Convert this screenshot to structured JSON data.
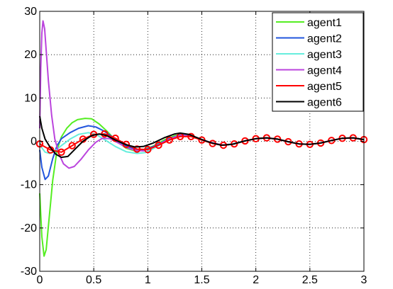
{
  "chart_data": {
    "type": "line",
    "title": "",
    "xlabel": "",
    "ylabel": "",
    "xlim": [
      0,
      3
    ],
    "ylim": [
      -30,
      30
    ],
    "x_ticks": [
      0,
      0.5,
      1,
      1.5,
      2,
      2.5,
      3
    ],
    "x_tick_labels": [
      "0",
      "0.5",
      "1",
      "1.5",
      "2",
      "2.5",
      "3"
    ],
    "y_ticks": [
      -30,
      -20,
      -10,
      0,
      10,
      20,
      30
    ],
    "y_tick_labels": [
      "-30",
      "-20",
      "-10",
      "0",
      "10",
      "20",
      "30"
    ],
    "grid": true,
    "legend_position": "top-right",
    "series": [
      {
        "name": "agent1",
        "color": "#55ee22",
        "marker": "none",
        "points": [
          [
            0,
            -12
          ],
          [
            0.02,
            -22
          ],
          [
            0.04,
            -26.5
          ],
          [
            0.06,
            -25
          ],
          [
            0.09,
            -17
          ],
          [
            0.12,
            -9
          ],
          [
            0.16,
            -2
          ],
          [
            0.2,
            1
          ],
          [
            0.25,
            3
          ],
          [
            0.3,
            4.3
          ],
          [
            0.35,
            5
          ],
          [
            0.42,
            5.3
          ],
          [
            0.48,
            5.2
          ],
          [
            0.55,
            4
          ],
          [
            0.62,
            2.4
          ],
          [
            0.7,
            0.3
          ],
          [
            0.8,
            -1.6
          ],
          [
            0.88,
            -2.2
          ],
          [
            0.95,
            -2.1
          ],
          [
            1.05,
            -1.1
          ],
          [
            1.15,
            0.3
          ],
          [
            1.25,
            1.3
          ],
          [
            1.32,
            1.5
          ],
          [
            1.4,
            1.2
          ],
          [
            1.5,
            0.3
          ],
          [
            1.6,
            -0.4
          ],
          [
            1.7,
            -0.9
          ],
          [
            1.8,
            -0.6
          ],
          [
            1.9,
            0.1
          ],
          [
            2.0,
            0.6
          ],
          [
            2.1,
            0.8
          ],
          [
            2.2,
            0.5
          ],
          [
            2.3,
            -0.1
          ],
          [
            2.4,
            -0.6
          ],
          [
            2.5,
            -0.7
          ],
          [
            2.6,
            -0.4
          ],
          [
            2.7,
            0.2
          ],
          [
            2.8,
            0.7
          ],
          [
            2.9,
            0.8
          ],
          [
            3.0,
            0.4
          ]
        ]
      },
      {
        "name": "agent2",
        "color": "#2255dd",
        "marker": "none",
        "points": [
          [
            0,
            -2
          ],
          [
            0.02,
            -6
          ],
          [
            0.05,
            -8.8
          ],
          [
            0.08,
            -8
          ],
          [
            0.12,
            -4
          ],
          [
            0.16,
            -1
          ],
          [
            0.2,
            0.6
          ],
          [
            0.28,
            2
          ],
          [
            0.36,
            3
          ],
          [
            0.45,
            3.6
          ],
          [
            0.52,
            3.3
          ],
          [
            0.6,
            2.3
          ],
          [
            0.7,
            0.5
          ],
          [
            0.8,
            -1.1
          ],
          [
            0.9,
            -1.9
          ],
          [
            0.98,
            -1.9
          ],
          [
            1.08,
            -0.9
          ],
          [
            1.18,
            0.4
          ],
          [
            1.28,
            1.3
          ],
          [
            1.34,
            1.5
          ],
          [
            1.42,
            1.1
          ],
          [
            1.52,
            0.2
          ],
          [
            1.62,
            -0.5
          ],
          [
            1.7,
            -0.9
          ],
          [
            1.8,
            -0.5
          ],
          [
            1.9,
            0.1
          ],
          [
            2.0,
            0.6
          ],
          [
            2.1,
            0.8
          ],
          [
            2.2,
            0.5
          ],
          [
            2.3,
            -0.1
          ],
          [
            2.4,
            -0.6
          ],
          [
            2.5,
            -0.7
          ],
          [
            2.6,
            -0.4
          ],
          [
            2.7,
            0.2
          ],
          [
            2.8,
            0.7
          ],
          [
            2.9,
            0.8
          ],
          [
            3.0,
            0.4
          ]
        ]
      },
      {
        "name": "agent3",
        "color": "#66eedd",
        "marker": "none",
        "points": [
          [
            0,
            0
          ],
          [
            0.02,
            -1.5
          ],
          [
            0.05,
            -2.5
          ],
          [
            0.09,
            -2.8
          ],
          [
            0.14,
            -2.2
          ],
          [
            0.2,
            -1
          ],
          [
            0.28,
            0.5
          ],
          [
            0.36,
            1.6
          ],
          [
            0.45,
            2
          ],
          [
            0.52,
            1.6
          ],
          [
            0.6,
            0.4
          ],
          [
            0.7,
            -1.2
          ],
          [
            0.8,
            -2.4
          ],
          [
            0.9,
            -2.8
          ],
          [
            0.98,
            -2.6
          ],
          [
            1.08,
            -1.3
          ],
          [
            1.18,
            0.2
          ],
          [
            1.28,
            1.2
          ],
          [
            1.34,
            1.4
          ],
          [
            1.42,
            1.0
          ],
          [
            1.52,
            0.1
          ],
          [
            1.62,
            -0.6
          ],
          [
            1.7,
            -0.9
          ],
          [
            1.8,
            -0.5
          ],
          [
            1.9,
            0.1
          ],
          [
            2.0,
            0.6
          ],
          [
            2.1,
            0.8
          ],
          [
            2.2,
            0.5
          ],
          [
            2.3,
            -0.1
          ],
          [
            2.4,
            -0.6
          ],
          [
            2.5,
            -0.7
          ],
          [
            2.6,
            -0.4
          ],
          [
            2.7,
            0.2
          ],
          [
            2.8,
            0.7
          ],
          [
            2.9,
            0.8
          ],
          [
            3.0,
            0.4
          ]
        ]
      },
      {
        "name": "agent4",
        "color": "#bb44dd",
        "marker": "none",
        "points": [
          [
            0,
            3
          ],
          [
            0.01,
            17
          ],
          [
            0.02,
            25
          ],
          [
            0.03,
            27.8
          ],
          [
            0.045,
            26
          ],
          [
            0.06,
            21
          ],
          [
            0.08,
            14
          ],
          [
            0.11,
            6
          ],
          [
            0.14,
            0.5
          ],
          [
            0.18,
            -3
          ],
          [
            0.22,
            -5.2
          ],
          [
            0.27,
            -6.2
          ],
          [
            0.32,
            -5.8
          ],
          [
            0.38,
            -4.2
          ],
          [
            0.45,
            -2
          ],
          [
            0.52,
            -0.2
          ],
          [
            0.58,
            0.7
          ],
          [
            0.65,
            0.6
          ],
          [
            0.72,
            -0.3
          ],
          [
            0.8,
            -1.4
          ],
          [
            0.88,
            -2.1
          ],
          [
            0.96,
            -2.2
          ],
          [
            1.05,
            -1.4
          ],
          [
            1.15,
            -0.1
          ],
          [
            1.25,
            1.0
          ],
          [
            1.32,
            1.4
          ],
          [
            1.4,
            1.2
          ],
          [
            1.5,
            0.3
          ],
          [
            1.6,
            -0.4
          ],
          [
            1.7,
            -0.9
          ],
          [
            1.8,
            -0.6
          ],
          [
            1.9,
            0.1
          ],
          [
            2.0,
            0.6
          ],
          [
            2.1,
            0.8
          ],
          [
            2.2,
            0.5
          ],
          [
            2.3,
            -0.1
          ],
          [
            2.4,
            -0.6
          ],
          [
            2.5,
            -0.7
          ],
          [
            2.6,
            -0.4
          ],
          [
            2.7,
            0.2
          ],
          [
            2.8,
            0.7
          ],
          [
            2.9,
            0.8
          ],
          [
            3.0,
            0.4
          ]
        ]
      },
      {
        "name": "agent5",
        "color": "#ff0000",
        "marker": "circle",
        "points": [
          [
            0,
            -0.6
          ],
          [
            0.1,
            -2
          ],
          [
            0.2,
            -2.5
          ],
          [
            0.3,
            -1
          ],
          [
            0.4,
            0.5
          ],
          [
            0.5,
            1.6
          ],
          [
            0.6,
            1.7
          ],
          [
            0.7,
            0.7
          ],
          [
            0.8,
            -0.7
          ],
          [
            0.9,
            -1.8
          ],
          [
            1.0,
            -1.9
          ],
          [
            1.1,
            -0.9
          ],
          [
            1.2,
            0.3
          ],
          [
            1.3,
            1.1
          ],
          [
            1.4,
            1.1
          ],
          [
            1.5,
            0.3
          ],
          [
            1.6,
            -0.5
          ],
          [
            1.7,
            -0.9
          ],
          [
            1.8,
            -0.6
          ],
          [
            1.9,
            0.1
          ],
          [
            2.0,
            0.6
          ],
          [
            2.1,
            0.8
          ],
          [
            2.2,
            0.5
          ],
          [
            2.3,
            -0.1
          ],
          [
            2.4,
            -0.6
          ],
          [
            2.5,
            -0.7
          ],
          [
            2.6,
            -0.4
          ],
          [
            2.7,
            0.2
          ],
          [
            2.8,
            0.7
          ],
          [
            2.9,
            0.8
          ],
          [
            3.0,
            0.4
          ]
        ]
      },
      {
        "name": "agent6",
        "color": "#000000",
        "marker": "none",
        "points": [
          [
            0,
            5.8
          ],
          [
            0.02,
            3
          ],
          [
            0.05,
            0.5
          ],
          [
            0.1,
            -1.5
          ],
          [
            0.15,
            -3
          ],
          [
            0.2,
            -3.7
          ],
          [
            0.26,
            -3.5
          ],
          [
            0.32,
            -2
          ],
          [
            0.4,
            0
          ],
          [
            0.48,
            1.3
          ],
          [
            0.55,
            1.7
          ],
          [
            0.62,
            1.3
          ],
          [
            0.7,
            0.3
          ],
          [
            0.8,
            -0.8
          ],
          [
            0.88,
            -1.3
          ],
          [
            0.96,
            -1.2
          ],
          [
            1.05,
            -0.4
          ],
          [
            1.15,
            0.8
          ],
          [
            1.25,
            1.7
          ],
          [
            1.3,
            1.9
          ],
          [
            1.38,
            1.6
          ],
          [
            1.48,
            0.6
          ],
          [
            1.58,
            -0.3
          ],
          [
            1.68,
            -0.9
          ],
          [
            1.78,
            -0.7
          ],
          [
            1.9,
            0.1
          ],
          [
            2.0,
            0.6
          ],
          [
            2.1,
            0.8
          ],
          [
            2.2,
            0.5
          ],
          [
            2.3,
            -0.1
          ],
          [
            2.4,
            -0.6
          ],
          [
            2.5,
            -0.7
          ],
          [
            2.6,
            -0.4
          ],
          [
            2.7,
            0.2
          ],
          [
            2.8,
            0.7
          ],
          [
            2.9,
            0.8
          ],
          [
            3.0,
            0.4
          ]
        ]
      }
    ]
  }
}
